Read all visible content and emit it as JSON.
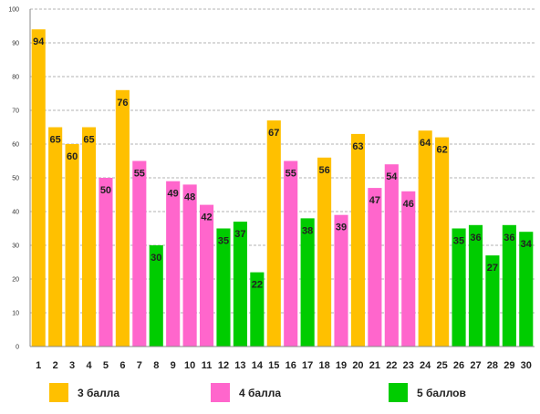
{
  "chart_data": {
    "type": "bar",
    "title": "",
    "xlabel": "",
    "ylabel": "",
    "ylim": [
      0,
      100
    ],
    "yticks": [
      0,
      10,
      20,
      30,
      40,
      50,
      60,
      70,
      80,
      90,
      100
    ],
    "grid": "horizontal dashed",
    "legend_position": "bottom",
    "categories": [
      "1",
      "2",
      "3",
      "4",
      "5",
      "6",
      "7",
      "8",
      "9",
      "10",
      "11",
      "12",
      "13",
      "14",
      "15",
      "16",
      "17",
      "18",
      "19",
      "20",
      "21",
      "22",
      "23",
      "24",
      "25",
      "26",
      "27",
      "28",
      "29",
      "30"
    ],
    "values": [
      94,
      65,
      60,
      65,
      50,
      76,
      55,
      30,
      49,
      48,
      42,
      35,
      37,
      22,
      67,
      55,
      38,
      56,
      39,
      63,
      47,
      54,
      46,
      64,
      62,
      35,
      36,
      27,
      36,
      34
    ],
    "grades": [
      3,
      3,
      3,
      3,
      4,
      3,
      4,
      5,
      4,
      4,
      4,
      5,
      5,
      5,
      3,
      4,
      5,
      3,
      4,
      3,
      4,
      4,
      4,
      3,
      3,
      5,
      5,
      5,
      5,
      5
    ],
    "legend": [
      {
        "grade": 3,
        "label": "3 балла",
        "color": "#FFC000"
      },
      {
        "grade": 4,
        "label": "4 балла",
        "color": "#FF66CC"
      },
      {
        "grade": 5,
        "label": "5 баллов",
        "color": "#00CC00"
      }
    ]
  }
}
